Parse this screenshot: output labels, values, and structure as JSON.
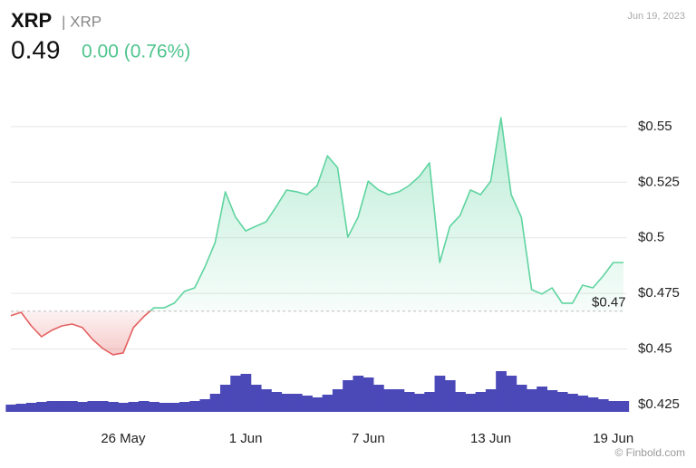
{
  "chart_data": {
    "type": "line",
    "title": "XRP",
    "subtitle": "| XRP",
    "price": "0.49",
    "change": "0.00 (0.76%)",
    "date": "Jun 19, 2023",
    "credit": "© Finbold.com",
    "categories": [
      null,
      null,
      null,
      null,
      null,
      null,
      null,
      null,
      null,
      null,
      null,
      "26 May",
      null,
      null,
      null,
      null,
      null,
      null,
      null,
      null,
      null,
      null,
      null,
      "1 Jun",
      null,
      null,
      null,
      null,
      null,
      null,
      null,
      null,
      null,
      null,
      null,
      "7 Jun",
      null,
      null,
      null,
      null,
      null,
      null,
      null,
      null,
      null,
      null,
      null,
      "13 Jun",
      null,
      null,
      null,
      null,
      null,
      null,
      null,
      null,
      null,
      null,
      null,
      "19 Jun",
      null
    ],
    "series": [
      {
        "name": "XRP",
        "color": "#5fd4a0",
        "negative_color": "#e46060",
        "values": [
          0.465,
          0.4665,
          0.4604,
          0.4555,
          0.4584,
          0.4604,
          0.4612,
          0.4596,
          0.4543,
          0.4502,
          0.4474,
          0.4482,
          0.4596,
          0.4645,
          0.4685,
          0.4685,
          0.4706,
          0.4759,
          0.4775,
          0.4869,
          0.4978,
          0.5207,
          0.5093,
          0.5031,
          0.5052,
          0.5072,
          0.5141,
          0.5215,
          0.5207,
          0.5194,
          0.5235,
          0.5369,
          0.5316,
          0.5003,
          0.5093,
          0.5255,
          0.5215,
          0.5194,
          0.5207,
          0.5235,
          0.5276,
          0.5337,
          0.4889,
          0.5052,
          0.5101,
          0.5215,
          0.5194,
          0.5255,
          0.554,
          0.5194,
          0.5093,
          0.4767,
          0.4747,
          0.4775,
          0.4706,
          0.4706,
          0.4787,
          0.4775,
          0.4828,
          0.4889,
          0.4889
        ]
      },
      {
        "name": "Volume",
        "color": "#4b48b8",
        "values": [
          16,
          18,
          20,
          22,
          24,
          24,
          24,
          22,
          24,
          24,
          22,
          20,
          22,
          24,
          22,
          20,
          20,
          22,
          24,
          28,
          40,
          60,
          80,
          84,
          60,
          50,
          44,
          40,
          40,
          36,
          32,
          38,
          50,
          70,
          80,
          76,
          60,
          50,
          50,
          44,
          40,
          44,
          80,
          70,
          44,
          40,
          44,
          50,
          90,
          80,
          60,
          50,
          56,
          48,
          44,
          40,
          36,
          32,
          28,
          24,
          24
        ]
      }
    ],
    "ylim": [
      0.4217,
      0.5581
    ],
    "yticks": [
      {
        "value": 0.425,
        "label": "$0.425"
      },
      {
        "value": 0.45,
        "label": "$0.45"
      },
      {
        "value": 0.475,
        "label": "$0.475"
      },
      {
        "value": 0.5,
        "label": "$0.5"
      },
      {
        "value": 0.525,
        "label": "$0.525"
      },
      {
        "value": 0.55,
        "label": "$0.55"
      }
    ],
    "reference": {
      "value": 0.467,
      "label": "$0.47"
    },
    "grid": true
  }
}
